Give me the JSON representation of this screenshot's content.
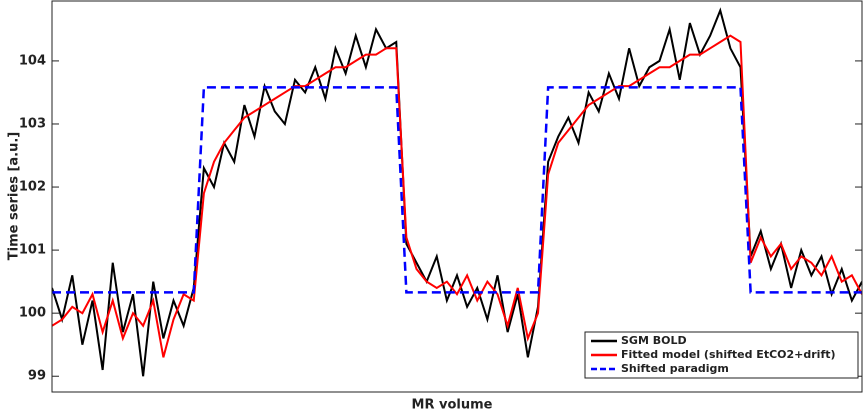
{
  "chart_data": {
    "type": "line",
    "x_label": "MR volume",
    "y_label": "Time series [a.u.]",
    "x": [
      0,
      2.5,
      5,
      7.5,
      10,
      12.5,
      15,
      17.5,
      20,
      22.5,
      25,
      27.5,
      30,
      32.5,
      35,
      37.5,
      40,
      42.5,
      45,
      47.5,
      50,
      52.5,
      55,
      57.5,
      60,
      62.5,
      65,
      67.5,
      70,
      72.5,
      75,
      77.5,
      80,
      82.5,
      85,
      87.5,
      90,
      92.5,
      95,
      97.5,
      100,
      102.5,
      105,
      107.5,
      110,
      112.5,
      115,
      117.5,
      120,
      122.5,
      125,
      127.5,
      130,
      132.5,
      135,
      137.5,
      140,
      142.5,
      145,
      147.5,
      150,
      152.5,
      155,
      157.5,
      160,
      162.5,
      165,
      167.5,
      170,
      172.5,
      175,
      177.5,
      180,
      182.5,
      185,
      187.5,
      190,
      192.5,
      195,
      197.5,
      200
    ],
    "xlim": [
      0,
      200
    ],
    "ylim": [
      98.75,
      104.95
    ],
    "yticks": [
      99,
      100,
      101,
      102,
      103,
      104
    ],
    "legend": "lower right",
    "series": [
      {
        "name": "SGM BOLD",
        "color": "#000000",
        "dash": "solid",
        "values": [
          100.4,
          99.9,
          100.6,
          99.5,
          100.2,
          99.1,
          100.8,
          99.7,
          100.3,
          99.0,
          100.5,
          99.6,
          100.2,
          99.8,
          100.4,
          102.3,
          102.0,
          102.7,
          102.4,
          103.3,
          102.8,
          103.6,
          103.2,
          103.0,
          103.7,
          103.5,
          103.9,
          103.4,
          104.2,
          103.8,
          104.4,
          103.9,
          104.5,
          104.2,
          104.3,
          101.1,
          100.8,
          100.5,
          100.9,
          100.2,
          100.6,
          100.1,
          100.4,
          99.9,
          100.6,
          99.7,
          100.3,
          99.3,
          100.1,
          102.4,
          102.8,
          103.1,
          102.7,
          103.5,
          103.2,
          103.8,
          103.4,
          104.2,
          103.6,
          103.9,
          104.0,
          104.5,
          103.7,
          104.6,
          104.1,
          104.4,
          104.8,
          104.2,
          103.9,
          100.9,
          101.3,
          100.7,
          101.1,
          100.4,
          101.0,
          100.6,
          100.9,
          100.3,
          100.7,
          100.2,
          100.5
        ]
      },
      {
        "name": "Fitted model (shifted EtCO2+drift)",
        "color": "#ff0000",
        "dash": "solid",
        "values": [
          99.8,
          99.9,
          100.1,
          100.0,
          100.3,
          99.7,
          100.2,
          99.6,
          100.0,
          99.8,
          100.2,
          99.3,
          99.9,
          100.3,
          100.2,
          101.9,
          102.4,
          102.7,
          102.9,
          103.1,
          103.2,
          103.3,
          103.4,
          103.5,
          103.6,
          103.6,
          103.7,
          103.8,
          103.9,
          103.9,
          104.0,
          104.1,
          104.1,
          104.2,
          104.2,
          101.2,
          100.7,
          100.5,
          100.4,
          100.5,
          100.3,
          100.6,
          100.2,
          100.5,
          100.3,
          99.8,
          100.4,
          99.6,
          100.0,
          102.2,
          102.7,
          102.9,
          103.1,
          103.3,
          103.4,
          103.5,
          103.6,
          103.6,
          103.7,
          103.8,
          103.9,
          103.9,
          104.0,
          104.1,
          104.1,
          104.2,
          104.3,
          104.4,
          104.3,
          100.8,
          101.2,
          100.9,
          101.1,
          100.7,
          100.9,
          100.8,
          100.6,
          100.9,
          100.5,
          100.6,
          100.3
        ]
      },
      {
        "name": "Shifted paradigm",
        "color": "#0000ff",
        "dash": "dashed",
        "values": [
          100.33,
          100.33,
          100.33,
          100.33,
          100.33,
          100.33,
          100.33,
          100.33,
          100.33,
          100.33,
          100.33,
          100.33,
          100.33,
          100.33,
          100.33,
          103.58,
          103.58,
          103.58,
          103.58,
          103.58,
          103.58,
          103.58,
          103.58,
          103.58,
          103.58,
          103.58,
          103.58,
          103.58,
          103.58,
          103.58,
          103.58,
          103.58,
          103.58,
          103.58,
          103.58,
          100.33,
          100.33,
          100.33,
          100.33,
          100.33,
          100.33,
          100.33,
          100.33,
          100.33,
          100.33,
          100.33,
          100.33,
          100.33,
          100.33,
          103.58,
          103.58,
          103.58,
          103.58,
          103.58,
          103.58,
          103.58,
          103.58,
          103.58,
          103.58,
          103.58,
          103.58,
          103.58,
          103.58,
          103.58,
          103.58,
          103.58,
          103.58,
          103.58,
          103.58,
          100.33,
          100.33,
          100.33,
          100.33,
          100.33,
          100.33,
          100.33,
          100.33,
          100.33,
          100.33,
          100.33,
          100.33
        ]
      }
    ]
  }
}
